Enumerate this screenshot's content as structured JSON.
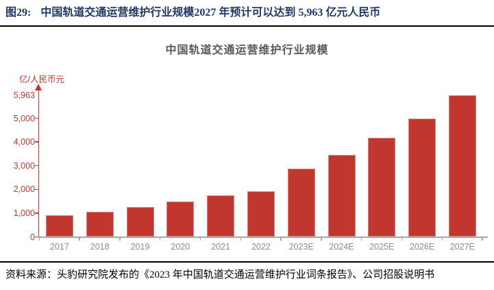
{
  "header": {
    "figure_label": "图29:",
    "title": "中国轨道交通运营维护行业规模2027 年预计可以达到 5,963 亿元人民币"
  },
  "footer": {
    "source": "资料来源：头豹研究院发布的《2023 年中国轨道交通运营维护行业词条报告》、公司招股说明书"
  },
  "chart_data": {
    "type": "bar",
    "title": "中国轨道交通运营维护行业规模",
    "unit_label": "亿/人民币元",
    "categories": [
      "2017",
      "2018",
      "2019",
      "2020",
      "2021",
      "2022",
      "2023E",
      "2024E",
      "2025E",
      "2026E",
      "2027E"
    ],
    "values": [
      920,
      1050,
      1270,
      1490,
      1760,
      1920,
      2880,
      3460,
      4170,
      5000,
      5963
    ],
    "xlabel": "",
    "ylabel": "亿/人民币元",
    "ylim": [
      0,
      5963
    ],
    "yticks": [
      {
        "label": "0",
        "value": 0,
        "tick": true
      },
      {
        "label": "1,000",
        "value": 1000,
        "tick": true
      },
      {
        "label": "2,000",
        "value": 2000,
        "tick": true
      },
      {
        "label": "3,000",
        "value": 3000,
        "tick": true
      },
      {
        "label": "4,000",
        "value": 4000,
        "tick": true
      },
      {
        "label": "5,000",
        "value": 5000,
        "tick": true
      },
      {
        "label": "5,963",
        "value": 5963,
        "tick": false
      }
    ],
    "grid": false,
    "legend_position": "none",
    "bar_color": "#c1362e",
    "bar_border_color": "#dd8277",
    "y_axis_color": "#c1362e",
    "x_axis_color": "#a6a6a6",
    "x_label_color": "#8a8a8a"
  },
  "colors": {
    "header_text": "#1f3864",
    "chart_title_text": "#595959",
    "rule": "#000000",
    "footer_text": "#000000",
    "background": "#ffffff"
  }
}
